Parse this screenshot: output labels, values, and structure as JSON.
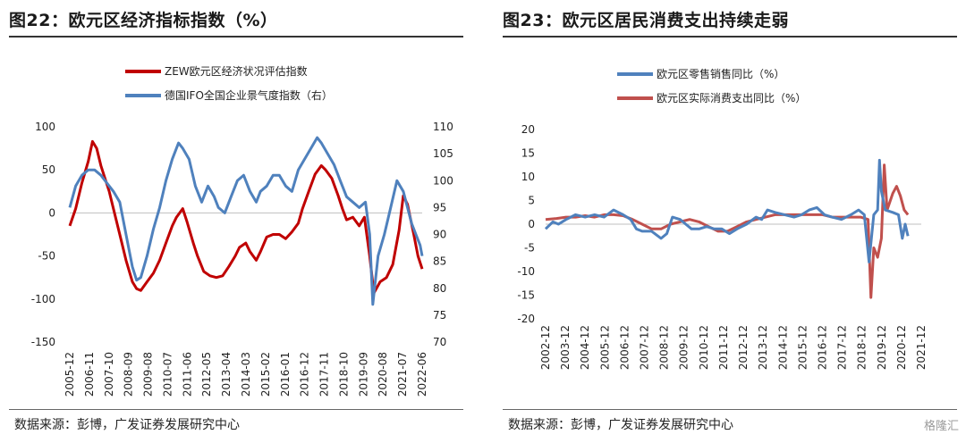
{
  "colors": {
    "red": "#c00000",
    "blue": "#4f81bd",
    "red2": "#c0504d",
    "text": "#222222"
  },
  "panel1": {
    "title": "图22：欧元区经济指标指数（%）",
    "source": "数据来源：彭博，广发证券发展研究中心"
  },
  "panel2": {
    "title": "图23：欧元区居民消费支出持续走弱",
    "source": "数据来源：彭博，广发证券发展研究中心",
    "watermark": "格隆汇"
  },
  "chart_data": [
    {
      "type": "line",
      "x_tick_labels": [
        "2005-12",
        "2006-11",
        "2007-10",
        "2008-09",
        "2009-08",
        "2010-07",
        "2011-06",
        "2012-05",
        "2013-04",
        "2014-03",
        "2015-02",
        "2016-01",
        "2016-12",
        "2017-11",
        "2018-10",
        "2019-09",
        "2020-08",
        "2021-07",
        "2022-06"
      ],
      "x_range": [
        2005.92,
        2022.7
      ],
      "ylim_left": [
        -150,
        100
      ],
      "yticks_left": [
        -150,
        -100,
        -50,
        0,
        50,
        100
      ],
      "ylim_right": [
        70,
        110
      ],
      "yticks_right": [
        70,
        75,
        80,
        85,
        90,
        95,
        100,
        105,
        110
      ],
      "series": [
        {
          "name": "ZEW欧元区经济状况评估指数",
          "axis": "left",
          "color": "#c00000",
          "points": [
            [
              2005.92,
              -15
            ],
            [
              2006.2,
              5
            ],
            [
              2006.5,
              35
            ],
            [
              2006.8,
              60
            ],
            [
              2007.0,
              83
            ],
            [
              2007.2,
              75
            ],
            [
              2007.4,
              55
            ],
            [
              2007.6,
              40
            ],
            [
              2007.8,
              25
            ],
            [
              2008.0,
              5
            ],
            [
              2008.3,
              -25
            ],
            [
              2008.6,
              -55
            ],
            [
              2008.9,
              -80
            ],
            [
              2009.1,
              -88
            ],
            [
              2009.3,
              -90
            ],
            [
              2009.6,
              -80
            ],
            [
              2009.9,
              -70
            ],
            [
              2010.2,
              -55
            ],
            [
              2010.5,
              -35
            ],
            [
              2010.8,
              -15
            ],
            [
              2011.0,
              -5
            ],
            [
              2011.3,
              5
            ],
            [
              2011.5,
              -10
            ],
            [
              2011.8,
              -35
            ],
            [
              2012.0,
              -50
            ],
            [
              2012.3,
              -68
            ],
            [
              2012.6,
              -73
            ],
            [
              2012.9,
              -75
            ],
            [
              2013.2,
              -73
            ],
            [
              2013.5,
              -62
            ],
            [
              2013.8,
              -50
            ],
            [
              2014.0,
              -40
            ],
            [
              2014.3,
              -35
            ],
            [
              2014.5,
              -45
            ],
            [
              2014.8,
              -55
            ],
            [
              2015.0,
              -45
            ],
            [
              2015.3,
              -28
            ],
            [
              2015.6,
              -25
            ],
            [
              2015.9,
              -25
            ],
            [
              2016.2,
              -30
            ],
            [
              2016.5,
              -22
            ],
            [
              2016.8,
              -12
            ],
            [
              2017.0,
              5
            ],
            [
              2017.3,
              25
            ],
            [
              2017.6,
              45
            ],
            [
              2017.9,
              55
            ],
            [
              2018.1,
              50
            ],
            [
              2018.4,
              40
            ],
            [
              2018.7,
              20
            ],
            [
              2018.9,
              5
            ],
            [
              2019.1,
              -8
            ],
            [
              2019.4,
              -5
            ],
            [
              2019.7,
              -15
            ],
            [
              2019.95,
              -5
            ],
            [
              2020.2,
              -50
            ],
            [
              2020.4,
              -93
            ],
            [
              2020.7,
              -80
            ],
            [
              2021.0,
              -75
            ],
            [
              2021.3,
              -60
            ],
            [
              2021.6,
              -20
            ],
            [
              2021.8,
              20
            ],
            [
              2022.0,
              10
            ],
            [
              2022.3,
              -25
            ],
            [
              2022.5,
              -50
            ],
            [
              2022.7,
              -65
            ]
          ]
        },
        {
          "name": "德国IFO全国企业景气度指数（右）",
          "axis": "right",
          "color": "#4f81bd",
          "points": [
            [
              2005.92,
              95
            ],
            [
              2006.2,
              99
            ],
            [
              2006.5,
              101
            ],
            [
              2006.8,
              102
            ],
            [
              2007.1,
              102
            ],
            [
              2007.4,
              101
            ],
            [
              2007.7,
              99.5
            ],
            [
              2008.0,
              98
            ],
            [
              2008.3,
              96
            ],
            [
              2008.6,
              90
            ],
            [
              2008.9,
              84
            ],
            [
              2009.1,
              81.5
            ],
            [
              2009.3,
              82
            ],
            [
              2009.6,
              86
            ],
            [
              2009.9,
              91
            ],
            [
              2010.2,
              95
            ],
            [
              2010.5,
              100
            ],
            [
              2010.8,
              104
            ],
            [
              2011.1,
              107
            ],
            [
              2011.3,
              106
            ],
            [
              2011.6,
              104
            ],
            [
              2011.9,
              99
            ],
            [
              2012.2,
              96
            ],
            [
              2012.5,
              99
            ],
            [
              2012.8,
              97
            ],
            [
              2013.0,
              95
            ],
            [
              2013.3,
              94
            ],
            [
              2013.6,
              97
            ],
            [
              2013.9,
              100
            ],
            [
              2014.2,
              101
            ],
            [
              2014.5,
              98
            ],
            [
              2014.8,
              96
            ],
            [
              2015.0,
              98
            ],
            [
              2015.3,
              99
            ],
            [
              2015.6,
              101
            ],
            [
              2015.9,
              101
            ],
            [
              2016.2,
              99
            ],
            [
              2016.5,
              98
            ],
            [
              2016.8,
              102
            ],
            [
              2017.1,
              104
            ],
            [
              2017.4,
              106
            ],
            [
              2017.7,
              108
            ],
            [
              2017.9,
              107
            ],
            [
              2018.2,
              105
            ],
            [
              2018.5,
              103
            ],
            [
              2018.8,
              100
            ],
            [
              2019.1,
              97
            ],
            [
              2019.4,
              96
            ],
            [
              2019.7,
              95
            ],
            [
              2020.0,
              96
            ],
            [
              2020.2,
              90
            ],
            [
              2020.35,
              77
            ],
            [
              2020.6,
              86
            ],
            [
              2020.9,
              90
            ],
            [
              2021.2,
              95
            ],
            [
              2021.5,
              100
            ],
            [
              2021.8,
              98
            ],
            [
              2022.0,
              95
            ],
            [
              2022.2,
              92
            ],
            [
              2022.4,
              90
            ],
            [
              2022.6,
              88
            ],
            [
              2022.7,
              86
            ]
          ]
        }
      ]
    },
    {
      "type": "line",
      "x_tick_labels": [
        "2002-12",
        "2003-12",
        "2004-12",
        "2005-12",
        "2006-12",
        "2007-12",
        "2008-12",
        "2009-12",
        "2010-12",
        "2011-12",
        "2012-12",
        "2013-12",
        "2014-12",
        "2015-12",
        "2016-12",
        "2017-12",
        "2018-12",
        "2019-12",
        "2020-12",
        "2021-12"
      ],
      "x_range": [
        2002.92,
        2022.7
      ],
      "ylim": [
        -20,
        20
      ],
      "yticks": [
        -20,
        -15,
        -10,
        -5,
        0,
        5,
        10,
        15,
        20
      ],
      "series": [
        {
          "name": "欧元区零售销售同比（%）",
          "color": "#4f81bd",
          "points": [
            [
              2002.92,
              -1
            ],
            [
              2003.3,
              0.5
            ],
            [
              2003.6,
              0
            ],
            [
              2004.0,
              1
            ],
            [
              2004.5,
              2
            ],
            [
              2005.0,
              1.5
            ],
            [
              2005.5,
              2
            ],
            [
              2006.0,
              1.5
            ],
            [
              2006.5,
              3
            ],
            [
              2007.0,
              2
            ],
            [
              2007.4,
              1
            ],
            [
              2007.7,
              -1
            ],
            [
              2008.0,
              -1.5
            ],
            [
              2008.5,
              -1.5
            ],
            [
              2009.0,
              -3
            ],
            [
              2009.3,
              -2
            ],
            [
              2009.6,
              1.5
            ],
            [
              2010.0,
              1
            ],
            [
              2010.3,
              0
            ],
            [
              2010.6,
              -1
            ],
            [
              2011.0,
              -1
            ],
            [
              2011.4,
              -0.5
            ],
            [
              2011.8,
              -1
            ],
            [
              2012.2,
              -1
            ],
            [
              2012.6,
              -2
            ],
            [
              2013.0,
              -1
            ],
            [
              2013.5,
              0
            ],
            [
              2014.0,
              1.5
            ],
            [
              2014.3,
              1
            ],
            [
              2014.6,
              3
            ],
            [
              2015.0,
              2.5
            ],
            [
              2015.5,
              2
            ],
            [
              2016.0,
              1.5
            ],
            [
              2016.4,
              2
            ],
            [
              2016.8,
              3
            ],
            [
              2017.2,
              3.5
            ],
            [
              2017.6,
              2
            ],
            [
              2018.0,
              1.5
            ],
            [
              2018.5,
              1
            ],
            [
              2019.0,
              2
            ],
            [
              2019.4,
              3
            ],
            [
              2019.7,
              2
            ],
            [
              2019.95,
              -8
            ],
            [
              2020.2,
              2
            ],
            [
              2020.4,
              3
            ],
            [
              2020.5,
              13.5
            ],
            [
              2020.6,
              7
            ],
            [
              2020.8,
              3
            ],
            [
              2021.2,
              2.5
            ],
            [
              2021.5,
              2
            ],
            [
              2021.7,
              -3
            ],
            [
              2021.85,
              0
            ],
            [
              2022.0,
              -2.5
            ]
          ]
        },
        {
          "name": "欧元区实际消费支出同比（%）",
          "color": "#c0504d",
          "points": [
            [
              2002.92,
              1
            ],
            [
              2003.5,
              1.2
            ],
            [
              2004.0,
              1.5
            ],
            [
              2004.5,
              1.5
            ],
            [
              2005.0,
              1.8
            ],
            [
              2005.5,
              1.5
            ],
            [
              2006.0,
              2
            ],
            [
              2006.5,
              2
            ],
            [
              2007.0,
              1.8
            ],
            [
              2007.5,
              1
            ],
            [
              2008.0,
              0
            ],
            [
              2008.5,
              -1
            ],
            [
              2009.0,
              -1
            ],
            [
              2009.5,
              0
            ],
            [
              2010.0,
              0.5
            ],
            [
              2010.5,
              1
            ],
            [
              2011.0,
              0.5
            ],
            [
              2011.5,
              -0.5
            ],
            [
              2012.0,
              -1.5
            ],
            [
              2012.5,
              -1.5
            ],
            [
              2013.0,
              -0.5
            ],
            [
              2013.5,
              0.5
            ],
            [
              2014.0,
              1
            ],
            [
              2014.5,
              1.5
            ],
            [
              2015.0,
              2
            ],
            [
              2015.5,
              2
            ],
            [
              2016.0,
              2
            ],
            [
              2016.5,
              2
            ],
            [
              2017.0,
              2
            ],
            [
              2017.5,
              2
            ],
            [
              2018.0,
              1.5
            ],
            [
              2018.5,
              1.5
            ],
            [
              2019.0,
              1.5
            ],
            [
              2019.5,
              1.5
            ],
            [
              2019.9,
              1
            ],
            [
              2020.05,
              -15.5
            ],
            [
              2020.2,
              -5
            ],
            [
              2020.4,
              -7
            ],
            [
              2020.6,
              -3
            ],
            [
              2020.75,
              12.5
            ],
            [
              2020.9,
              3
            ],
            [
              2021.2,
              6.5
            ],
            [
              2021.4,
              8
            ],
            [
              2021.6,
              6
            ],
            [
              2021.8,
              3
            ],
            [
              2022.0,
              2
            ]
          ]
        }
      ]
    }
  ]
}
